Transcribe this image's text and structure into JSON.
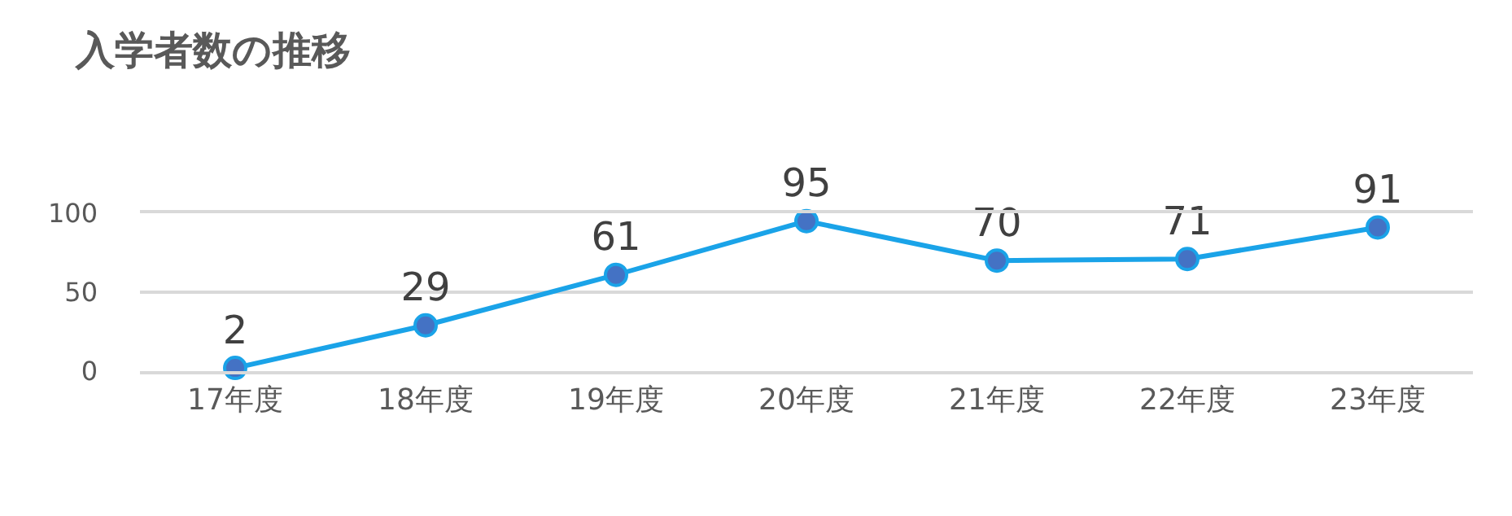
{
  "chart_data": {
    "type": "line",
    "title": "入学者数の推移",
    "categories": [
      "17年度",
      "18年度",
      "19年度",
      "20年度",
      "21年度",
      "22年度",
      "23年度"
    ],
    "series": [
      {
        "color": "#1aa3e8",
        "values": [
          2,
          29,
          61,
          95,
          70,
          71,
          91
        ]
      }
    ],
    "ylim": [
      0,
      100
    ],
    "yticks": [
      0,
      50,
      100
    ],
    "grid": "y",
    "marker": "circle",
    "line_style": "solid",
    "data_labels": true
  }
}
